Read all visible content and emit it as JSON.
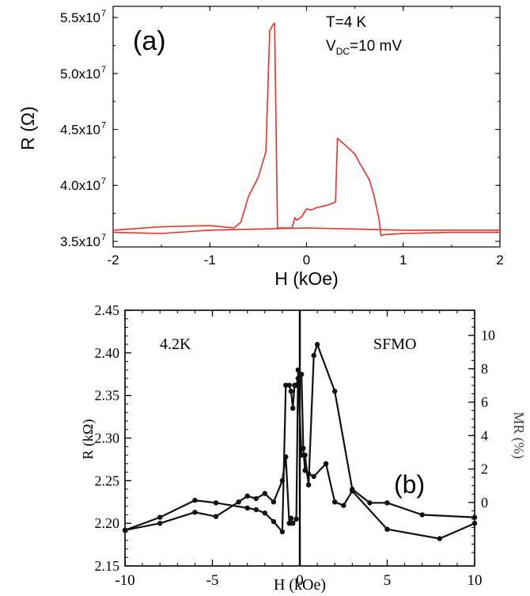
{
  "chart_data": [
    {
      "panel": "a",
      "type": "line",
      "panel_label": "(a)",
      "annotations": {
        "temperature": "T=4 K",
        "voltage_main": "V",
        "voltage_sub": "DC",
        "voltage_value": "=10 mV"
      },
      "xlabel": "H (kOe)",
      "ylabel": "R (Ω)",
      "xlim": [
        -2,
        2
      ],
      "ylim": [
        34500000.0,
        56000000.0
      ],
      "x_ticks": [
        {
          "value": -2,
          "label": "-2"
        },
        {
          "value": -1,
          "label": "-1"
        },
        {
          "value": 0,
          "label": "0"
        },
        {
          "value": 1,
          "label": "1"
        },
        {
          "value": 2,
          "label": "2"
        }
      ],
      "y_ticks": [
        {
          "value": 35000000.0,
          "mantissa": "3.5x10",
          "exp": "7"
        },
        {
          "value": 40000000.0,
          "mantissa": "4.0x10",
          "exp": "7"
        },
        {
          "value": 45000000.0,
          "mantissa": "4.5x10",
          "exp": "7"
        },
        {
          "value": 50000000.0,
          "mantissa": "5.0x10",
          "exp": "7"
        },
        {
          "value": 55000000.0,
          "mantissa": "5.5x10",
          "exp": "7"
        }
      ],
      "color": "#e8302a",
      "series": [
        {
          "x": [
            -2.0,
            -1.5,
            -1.0,
            -0.75,
            -0.68,
            -0.6,
            -0.5,
            -0.42,
            -0.38,
            -0.35,
            -0.33,
            -0.3,
            -0.15,
            -0.12,
            -0.1,
            -0.05,
            0.0,
            0.05,
            0.1,
            0.2,
            0.3,
            0.32,
            0.4,
            0.5,
            0.55,
            0.65,
            0.7,
            0.75,
            0.77,
            0.8,
            1.0,
            1.5,
            2.0
          ],
          "y": [
            36000000.0,
            36300000.0,
            36400000.0,
            36200000.0,
            36700000.0,
            39000000.0,
            40700000.0,
            43000000.0,
            53800000.0,
            54300000.0,
            54500000.0,
            36200000.0,
            36200000.0,
            37100000.0,
            36900000.0,
            37200000.0,
            37900000.0,
            37800000.0,
            38000000.0,
            38200000.0,
            38500000.0,
            44200000.0,
            43600000.0,
            42800000.0,
            42000000.0,
            40500000.0,
            39000000.0,
            37000000.0,
            35500000.0,
            35600000.0,
            35700000.0,
            35800000.0,
            35800000.0
          ]
        },
        {
          "x": [
            -2.0,
            -1.5,
            -1.0,
            -0.5,
            0.0,
            0.5,
            1.0,
            1.5,
            2.0
          ],
          "y": [
            35800000.0,
            35700000.0,
            36000000.0,
            36100000.0,
            36200000.0,
            36100000.0,
            36000000.0,
            36000000.0,
            36000000.0
          ]
        }
      ]
    },
    {
      "panel": "b",
      "type": "line",
      "panel_label": "(b)",
      "annotations": {
        "temperature": "4.2K",
        "material": "SFMO"
      },
      "xlabel": "H (kOe)",
      "ylabel": "R (kΩ)",
      "ylabel_right": "MR (%)",
      "xlim": [
        -10,
        10
      ],
      "ylim": [
        2.15,
        2.45
      ],
      "y2lim": [
        -3.8,
        11.5
      ],
      "x_ticks": [
        {
          "value": -10,
          "label": "-10"
        },
        {
          "value": -5,
          "label": "-5"
        },
        {
          "value": 0,
          "label": "0"
        },
        {
          "value": 5,
          "label": "5"
        },
        {
          "value": 10,
          "label": "10"
        }
      ],
      "y_ticks": [
        {
          "value": 2.15,
          "label": "2.15"
        },
        {
          "value": 2.2,
          "label": "2.20"
        },
        {
          "value": 2.25,
          "label": "2.25"
        },
        {
          "value": 2.3,
          "label": "2.30"
        },
        {
          "value": 2.35,
          "label": "2.35"
        },
        {
          "value": 2.4,
          "label": "2.40"
        },
        {
          "value": 2.45,
          "label": "2.45"
        }
      ],
      "y2_ticks": [
        {
          "value": 0,
          "label": "0"
        },
        {
          "value": 2,
          "label": "2"
        },
        {
          "value": 4,
          "label": "4"
        },
        {
          "value": 6,
          "label": "6"
        },
        {
          "value": 8,
          "label": "8"
        },
        {
          "value": 10,
          "label": "10"
        }
      ],
      "color": "#111111",
      "series": [
        {
          "x": [
            -10,
            -8,
            -6,
            -4.8,
            -3,
            -2.5,
            -2,
            -1.5,
            -1,
            -0.8,
            -0.6,
            -0.5,
            -0.4,
            -0.3,
            -0.2,
            -0.1,
            0.1,
            0.3,
            0.5,
            0.8,
            1.0,
            2.0,
            3.0,
            4.0,
            5.0,
            7.0,
            10.0
          ],
          "y": [
            2.192,
            2.207,
            2.227,
            2.224,
            2.218,
            2.216,
            2.212,
            2.202,
            2.19,
            2.362,
            2.362,
            2.355,
            2.335,
            2.362,
            2.362,
            2.37,
            2.28,
            2.28,
            2.245,
            2.397,
            2.41,
            2.355,
            2.24,
            2.224,
            2.224,
            2.21,
            2.207
          ]
        },
        {
          "x": [
            -10,
            -8,
            -6,
            -4.8,
            -3.5,
            -3,
            -2.5,
            -2,
            -1.5,
            -1,
            -0.8,
            -0.6,
            -0.5,
            -0.4,
            -0.2,
            -0.1,
            0.1,
            0.2,
            0.3,
            0.5,
            0.8,
            1.5,
            2.0,
            2.5,
            3.0,
            5.0,
            8.0,
            10.0
          ],
          "y": [
            2.192,
            2.2,
            2.213,
            2.208,
            2.225,
            2.232,
            2.229,
            2.235,
            2.225,
            2.25,
            2.278,
            2.2,
            2.206,
            2.2,
            2.205,
            2.38,
            2.375,
            2.288,
            2.262,
            2.258,
            2.255,
            2.27,
            2.225,
            2.221,
            2.238,
            2.193,
            2.182,
            2.2
          ]
        }
      ]
    }
  ]
}
